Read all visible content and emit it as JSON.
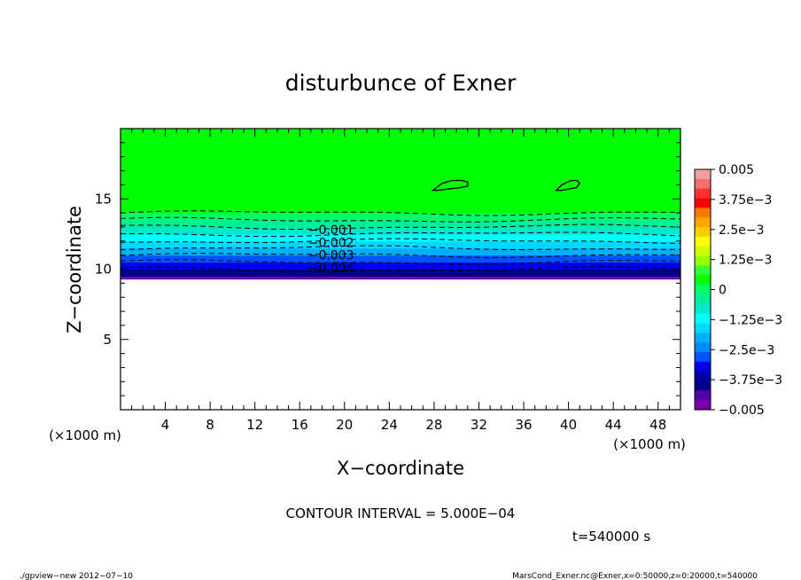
{
  "chart_data": {
    "type": "heatmap",
    "title": "disturbunce of Exner",
    "xlabel": "X−coordinate",
    "ylabel": "Z−coordinate",
    "x_unit": "(×1000 m)",
    "y_unit": "(×1000 m)",
    "xlim": [
      0,
      50
    ],
    "ylim": [
      0,
      20
    ],
    "x_ticks": [
      4,
      8,
      12,
      16,
      20,
      24,
      28,
      32,
      36,
      40,
      44,
      48
    ],
    "x_tick_labels": [
      "4",
      "8",
      "12",
      "16",
      "20",
      "24",
      "28",
      "32",
      "36",
      "40",
      "44",
      "48"
    ],
    "y_ticks": [
      5,
      10,
      15
    ],
    "y_tick_labels": [
      "5",
      "10",
      "15"
    ],
    "band_profile": {
      "z": [
        9.5,
        10.0,
        10.5,
        11.0,
        11.5,
        12.0,
        12.5,
        13.0,
        13.5,
        14.0
      ],
      "value": [
        -0.005,
        -0.0045,
        -0.004,
        -0.0035,
        -0.003,
        -0.0025,
        -0.002,
        -0.0015,
        -0.001,
        -0.0005
      ]
    },
    "data_bottom_z": 9.3,
    "contour_levels": [
      -0.0005,
      -0.001,
      -0.0015,
      -0.002,
      -0.0025,
      -0.003,
      -0.0035,
      -0.004,
      -0.0045
    ],
    "contour_labels": [
      {
        "text": "−0.001",
        "x": 18.8,
        "z": 12.8
      },
      {
        "text": "−0.002",
        "x": 18.8,
        "z": 11.9
      },
      {
        "text": "−0.003",
        "x": 18.8,
        "z": 11.0
      },
      {
        "text": "−0.004",
        "x": 18.8,
        "z": 10.1
      }
    ],
    "positive_contours": [
      {
        "x": [
          27.9,
          28.7,
          29.6,
          30.5,
          31.0,
          31.0,
          30.3,
          29.2,
          28.3,
          27.9
        ],
        "z": [
          15.6,
          16.1,
          16.3,
          16.3,
          16.2,
          15.9,
          15.8,
          15.7,
          15.6,
          15.6
        ]
      },
      {
        "x": [
          38.9,
          39.4,
          40.2,
          40.8,
          41.0,
          40.7,
          40.0,
          39.3,
          38.9
        ],
        "z": [
          15.6,
          16.0,
          16.3,
          16.3,
          16.1,
          15.8,
          15.7,
          15.6,
          15.6
        ]
      }
    ],
    "colorbar": {
      "tick_labels": [
        "0.005",
        "3.75e−3",
        "2.5e−3",
        "1.25e−3",
        "0",
        "−1.25e−3",
        "−2.5e−3",
        "−3.75e−3",
        "−0.005"
      ],
      "levels_top_to_bottom": [
        "#f0a0a0",
        "#f06f6f",
        "#ff3030",
        "#ff0000",
        "#f57a00",
        "#ffa500",
        "#f5d000",
        "#ffff00",
        "#ccff00",
        "#99ff00",
        "#33ff33",
        "#00ff00",
        "#00ff66",
        "#00ee99",
        "#00e8cc",
        "#00ffff",
        "#00d8ff",
        "#00b0ff",
        "#0088ff",
        "#0055ff",
        "#0000ee",
        "#0000aa",
        "#000088",
        "#5500aa",
        "#7700aa"
      ]
    },
    "fill_colors": {
      "background_above": "#00ff00",
      "level_neg_0.5e-3": "#00ff66",
      "level_neg_1.0e-3": "#00ee99",
      "level_neg_1.5e-3": "#00e8cc",
      "level_neg_2.0e-3": "#00ffff",
      "level_neg_2.5e-3": "#00d8ff",
      "level_neg_3.0e-3": "#00b0ff",
      "level_neg_3.5e-3": "#0055ff",
      "level_neg_4.0e-3": "#0000ee",
      "level_neg_4.5e-3": "#000088",
      "bottom": "#7700aa"
    }
  },
  "annotations": {
    "contour_interval": "CONTOUR INTERVAL = 5.000E−04",
    "time": "t=540000 s",
    "footer_left": "./gpview−new   2012−07−10",
    "footer_right": "MarsCond_Exner.nc@Exner,x=0:50000,z=0:20000,t=540000"
  }
}
